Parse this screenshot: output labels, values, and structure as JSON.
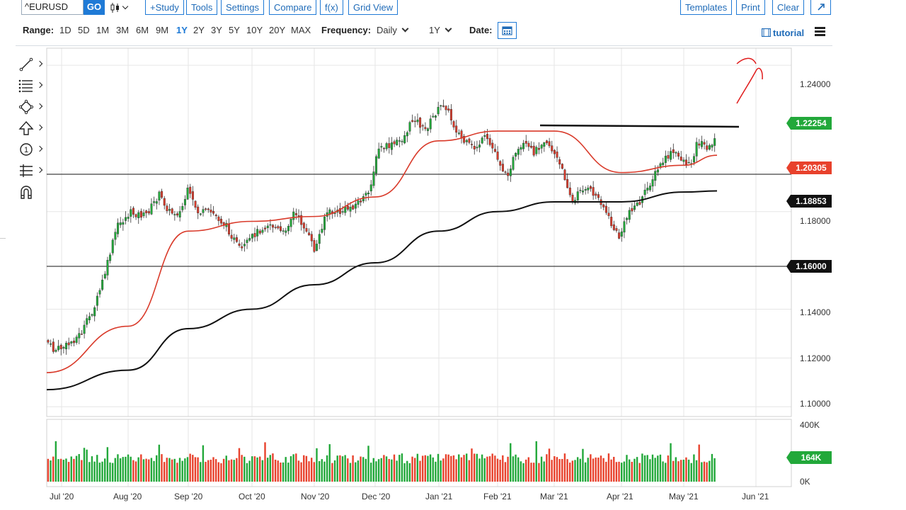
{
  "toolbar": {
    "symbol": "^EURUSD",
    "go_label": "GO",
    "study_label": "+Study",
    "tools_label": "Tools",
    "settings_label": "Settings",
    "compare_label": "Compare",
    "fx_label": "f(x)",
    "gridview_label": "Grid View",
    "templates_label": "Templates",
    "print_label": "Print",
    "clear_label": "Clear"
  },
  "rangebar": {
    "range_label": "Range:",
    "ranges": [
      "1D",
      "5D",
      "1M",
      "3M",
      "6M",
      "9M",
      "1Y",
      "2Y",
      "3Y",
      "5Y",
      "10Y",
      "20Y",
      "MAX"
    ],
    "active_range": "1Y",
    "frequency_label": "Frequency:",
    "frequency_value": "Daily",
    "period_value": "1Y",
    "date_label": "Date:",
    "tutorial_label": "tutorial"
  },
  "tools": {
    "icons": [
      "trendline-icon",
      "fibonacci-icon",
      "shape-icon",
      "arrow-up-icon",
      "counter-icon",
      "measure-icon",
      "magnet-icon"
    ]
  },
  "chart_data": {
    "type": "line",
    "title": "",
    "xlabel": "",
    "ylabel": "",
    "x_tick_labels": [
      "Jul '20",
      "Aug '20",
      "Sep '20",
      "Oct '20",
      "Nov '20",
      "Dec '20",
      "Jan '21",
      "Feb '21",
      "Mar '21",
      "Apr '21",
      "May '21",
      "Jun '21"
    ],
    "y_tick_labels": [
      "1.24000",
      "1.18000",
      "1.14000",
      "1.12000",
      "1.10000"
    ],
    "ylim": [
      1.096,
      1.247
    ],
    "price_labels": [
      {
        "value": "1.22254",
        "color": "#22a83a"
      },
      {
        "value": "1.20305",
        "color": "#e8412c"
      },
      {
        "value": "1.18853",
        "color": "#111111"
      },
      {
        "value": "1.16000",
        "color": "#111111"
      }
    ],
    "series": [
      {
        "name": "",
        "color": "#d93a2a",
        "x": [
          "Jul '20",
          "Aug '20",
          "Sep '20",
          "Oct '20",
          "Nov '20",
          "Dec '20",
          "Jan '21",
          "Feb '21",
          "Mar '21",
          "Apr '21",
          "May '21"
        ],
        "y": [
          1.114,
          1.133,
          1.172,
          1.176,
          1.178,
          1.186,
          1.209,
          1.213,
          1.213,
          1.196,
          1.199
        ]
      },
      {
        "name": "",
        "color": "#111111",
        "x": [
          "Jul '20",
          "Aug '20",
          "Sep '20",
          "Oct '20",
          "Nov '20",
          "Dec '20",
          "Jan '21",
          "Feb '21",
          "Mar '21",
          "Apr '21",
          "May '21"
        ],
        "y": [
          1.107,
          1.115,
          1.132,
          1.14,
          1.15,
          1.159,
          1.172,
          1.18,
          1.184,
          1.184,
          1.188
        ]
      }
    ],
    "volume_axis": [
      "400K",
      "0K"
    ],
    "volume_last": "164K"
  }
}
